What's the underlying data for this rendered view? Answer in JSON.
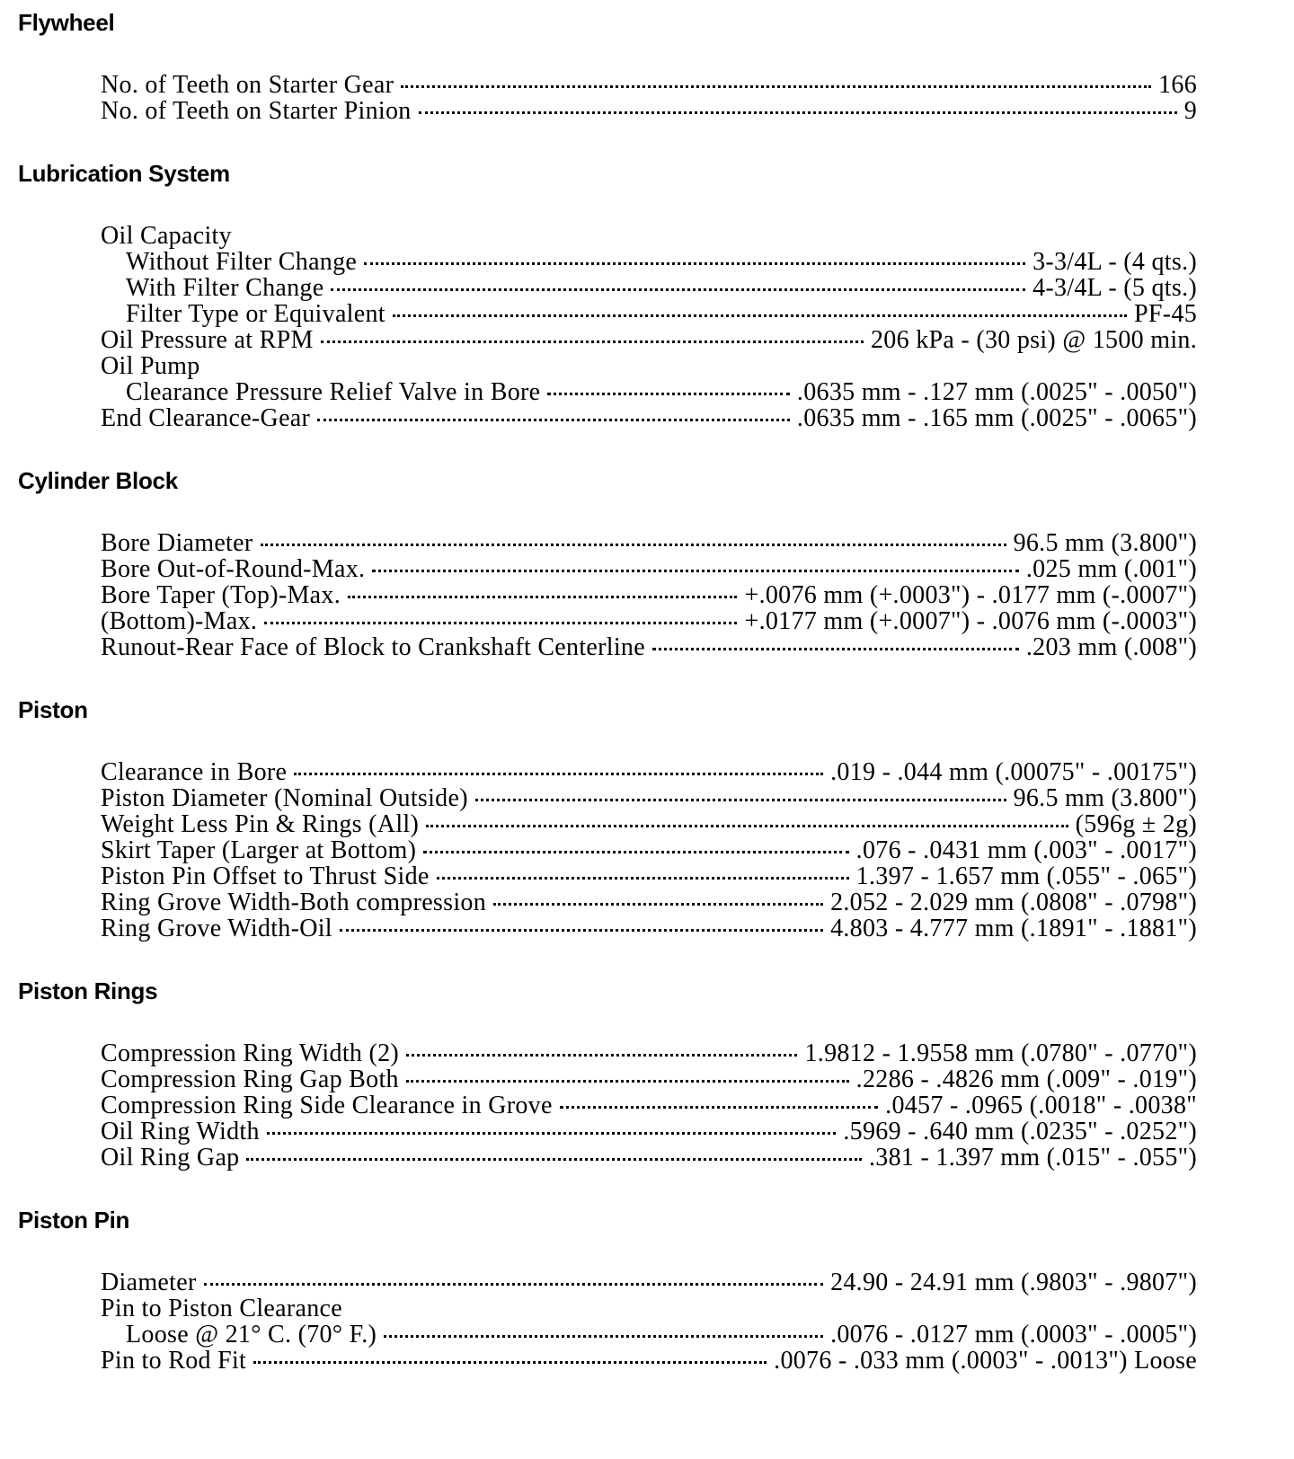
{
  "sections": [
    {
      "heading": "Flywheel",
      "rows": [
        {
          "label": "No. of Teeth on Starter Gear",
          "value": "166",
          "indent": 0
        },
        {
          "label": "No. of Teeth on Starter Pinion",
          "value": "9",
          "indent": 0
        }
      ]
    },
    {
      "heading": "Lubrication System",
      "rows": [
        {
          "label": "Oil Capacity",
          "value": "",
          "indent": 0
        },
        {
          "label": "Without Filter Change",
          "value": "3-3/4L - (4 qts.)",
          "indent": 1
        },
        {
          "label": "With Filter Change",
          "value": "4-3/4L - (5 qts.)",
          "indent": 1
        },
        {
          "label": "Filter Type or Equivalent",
          "value": "PF-45",
          "indent": 1
        },
        {
          "label": "Oil Pressure at RPM",
          "value": "206 kPa - (30 psi) @ 1500 min.",
          "indent": 0
        },
        {
          "label": "Oil Pump",
          "value": "",
          "indent": 0
        },
        {
          "label": "Clearance Pressure Relief Valve in Bore",
          "value": ".0635 mm - .127 mm (.0025\" - .0050\")",
          "indent": 1
        },
        {
          "label": "End Clearance-Gear",
          "value": ".0635 mm - .165 mm (.0025\" - .0065\")",
          "indent": 0
        }
      ]
    },
    {
      "heading": "Cylinder Block",
      "rows": [
        {
          "label": "Bore Diameter",
          "value": "96.5 mm (3.800\")",
          "indent": 0
        },
        {
          "label": "Bore Out-of-Round-Max.",
          "value": ".025 mm (.001\")",
          "indent": 0
        },
        {
          "label": "Bore Taper (Top)-Max.",
          "value": "+.0076 mm (+.0003\") - .0177 mm (-.0007\")",
          "indent": 0
        },
        {
          "label": "(Bottom)-Max.",
          "value": "+.0177 mm (+.0007\") - .0076 mm (-.0003\")",
          "indent": 0
        },
        {
          "label": "Runout-Rear Face of Block to Crankshaft Centerline",
          "value": ".203 mm (.008\")",
          "indent": 0
        }
      ]
    },
    {
      "heading": "Piston",
      "rows": [
        {
          "label": "Clearance in Bore",
          "value": ".019 - .044 mm (.00075\" - .00175\")",
          "indent": 0
        },
        {
          "label": "Piston Diameter (Nominal Outside)",
          "value": "96.5 mm (3.800\")",
          "indent": 0
        },
        {
          "label": "Weight Less Pin & Rings (All)",
          "value": "(596g ± 2g)",
          "indent": 0
        },
        {
          "label": "Skirt Taper (Larger at Bottom)",
          "value": ".076 - .0431 mm (.003\" - .0017\")",
          "indent": 0
        },
        {
          "label": "Piston Pin Offset to Thrust Side",
          "value": "1.397 - 1.657 mm (.055\" - .065\")",
          "indent": 0
        },
        {
          "label": "Ring Grove Width-Both compression",
          "value": "2.052 - 2.029 mm (.0808\" - .0798\")",
          "indent": 0
        },
        {
          "label": "Ring Grove Width-Oil",
          "value": "4.803 - 4.777 mm (.1891\" - .1881\")",
          "indent": 0
        }
      ]
    },
    {
      "heading": "Piston Rings",
      "rows": [
        {
          "label": "Compression Ring Width (2)",
          "value": "1.9812 - 1.9558 mm (.0780\" - .0770\")",
          "indent": 0
        },
        {
          "label": "Compression Ring Gap Both",
          "value": ".2286 - .4826 mm (.009\" - .019\")",
          "indent": 0
        },
        {
          "label": "Compression Ring Side Clearance in Grove",
          "value": ".0457 - .0965 (.0018\" - .0038\"",
          "indent": 0
        },
        {
          "label": "Oil Ring Width",
          "value": ".5969 - .640 mm (.0235\" - .0252\")",
          "indent": 0
        },
        {
          "label": "Oil Ring Gap",
          "value": ".381 - 1.397 mm (.015\" - .055\")",
          "indent": 0
        }
      ]
    },
    {
      "heading": "Piston Pin",
      "rows": [
        {
          "label": "Diameter",
          "value": "24.90 - 24.91 mm (.9803\" - .9807\")",
          "indent": 0
        },
        {
          "label": "Pin to Piston Clearance",
          "value": "",
          "indent": 0
        },
        {
          "label": "Loose @ 21° C. (70° F.)",
          "value": ".0076 - .0127 mm (.0003\" - .0005\")",
          "indent": 1
        },
        {
          "label": "Pin to Rod Fit",
          "value": ".0076 - .033 mm (.0003\" - .0013\") Loose",
          "indent": 0
        }
      ]
    }
  ]
}
